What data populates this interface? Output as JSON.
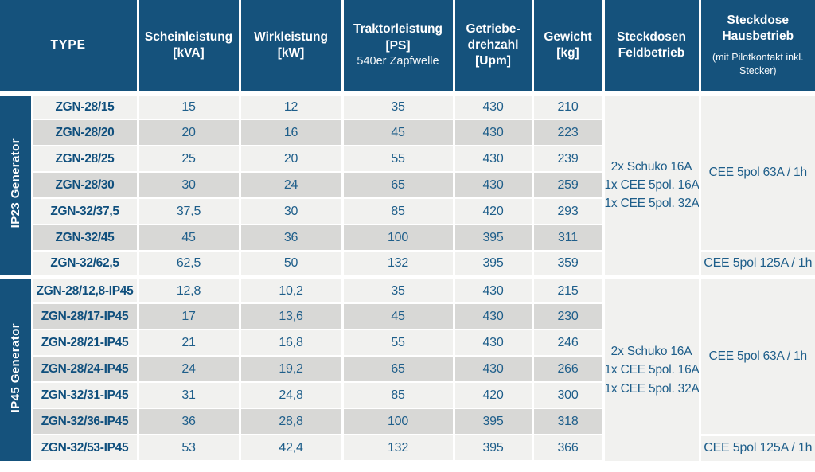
{
  "header": {
    "cols": [
      {
        "lines": [
          "TYPE"
        ]
      },
      {
        "lines": [
          "Scheinleistung",
          "[kVA]"
        ]
      },
      {
        "lines": [
          "Wirkleistung",
          "[kW]"
        ]
      },
      {
        "lines": [
          "Traktorleistung",
          "[PS]"
        ],
        "sub": "540er Zapfwelle"
      },
      {
        "lines": [
          "Getriebe-",
          "drehzahl",
          "[Upm]"
        ]
      },
      {
        "lines": [
          "Gewicht",
          "[kg]"
        ]
      },
      {
        "lines": [
          "Steckdosen",
          "Feldbetrieb"
        ]
      },
      {
        "lines": [
          "Steckdose",
          "Hausbetrieb"
        ],
        "note": "(mit Pilotkontakt inkl. Stecker)"
      }
    ]
  },
  "sections": [
    {
      "label": "IP23 Generator",
      "rows": [
        [
          "ZGN-28/15",
          "15",
          "12",
          "35",
          "430",
          "210"
        ],
        [
          "ZGN-28/20",
          "20",
          "16",
          "45",
          "430",
          "223"
        ],
        [
          "ZGN-28/25",
          "25",
          "20",
          "55",
          "430",
          "239"
        ],
        [
          "ZGN-28/30",
          "30",
          "24",
          "65",
          "430",
          "259"
        ],
        [
          "ZGN-32/37,5",
          "37,5",
          "30",
          "85",
          "420",
          "293"
        ],
        [
          "ZGN-32/45",
          "45",
          "36",
          "100",
          "395",
          "311"
        ],
        [
          "ZGN-32/62,5",
          "62,5",
          "50",
          "132",
          "395",
          "359"
        ]
      ],
      "feldbetrieb": [
        "2x Schuko 16A",
        "1x CEE 5pol. 16A",
        "1x CEE 5pol. 32A"
      ],
      "hausbetrieb": "CEE 5pol 63A / 1h",
      "hausbetrieb_last": "CEE 5pol 125A / 1h"
    },
    {
      "label": "IP45 Generator",
      "rows": [
        [
          "ZGN-28/12,8-IP45",
          "12,8",
          "10,2",
          "35",
          "430",
          "215"
        ],
        [
          "ZGN-28/17-IP45",
          "17",
          "13,6",
          "45",
          "430",
          "230"
        ],
        [
          "ZGN-28/21-IP45",
          "21",
          "16,8",
          "55",
          "430",
          "246"
        ],
        [
          "ZGN-28/24-IP45",
          "24",
          "19,2",
          "65",
          "430",
          "266"
        ],
        [
          "ZGN-32/31-IP45",
          "31",
          "24,8",
          "85",
          "420",
          "300"
        ],
        [
          "ZGN-32/36-IP45",
          "36",
          "28,8",
          "100",
          "395",
          "318"
        ],
        [
          "ZGN-32/53-IP45",
          "53",
          "42,4",
          "132",
          "395",
          "366"
        ]
      ],
      "feldbetrieb": [
        "2x Schuko 16A",
        "1x CEE 5pol. 16A",
        "1x CEE 5pol. 32A"
      ],
      "hausbetrieb": "CEE 5pol 63A / 1h",
      "hausbetrieb_last": "CEE 5pol 125A / 1h"
    }
  ],
  "colors": {
    "header_navy": "#15527C",
    "row_light": "#F1F1EF",
    "row_gray": "#D8D8D6",
    "merged_bg": "#F0F0EE",
    "data_text": "#1E5E8A",
    "model_text": "#0F4F7D"
  }
}
